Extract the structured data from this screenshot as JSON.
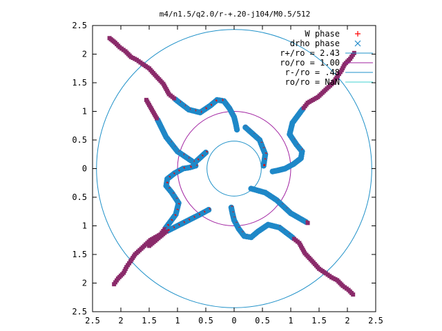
{
  "chart_data": {
    "type": "scatter",
    "title": "m4/n1.5/q2.0/r-+.20-j104/M0.5/512",
    "xlim": [
      -2.5,
      2.5
    ],
    "ylim": [
      -2.5,
      2.5
    ],
    "x_ticks": [
      "2.5",
      "2",
      "1.5",
      "1",
      "0.5",
      "0",
      "0.5",
      "1",
      "1.5",
      "2",
      "2.5"
    ],
    "y_ticks": [
      "2.5",
      "2",
      "1.5",
      "1",
      "0.5",
      "0",
      "0.5",
      "1",
      "1.5",
      "2",
      "2.5"
    ],
    "grid": false,
    "legend_position": "top-right",
    "legend": [
      {
        "label": "W phase",
        "marker": "+",
        "color": "#ff0000"
      },
      {
        "label": "drho phase",
        "marker": "x",
        "color": "#1e88c8"
      },
      {
        "label": "r+/ro = 2.43",
        "marker": "line",
        "color": "#1e90c8"
      },
      {
        "label": "ro/ro = 1.00",
        "marker": "line",
        "color": "#a020a0"
      },
      {
        "label": "r-/ro = .48",
        "marker": "line",
        "color": "#1e90c8"
      },
      {
        "label": "ro/ro = NaN",
        "marker": "line",
        "color": "#40d0d0"
      }
    ],
    "circles": [
      {
        "radius": 2.43,
        "color": "#1e90c8"
      },
      {
        "radius": 1.0,
        "color": "#a020a0"
      },
      {
        "radius": 0.48,
        "color": "#1e90c8"
      }
    ],
    "spiral_arms": [
      {
        "points": [
          [
            0.05,
            0.68
          ],
          [
            0.03,
            0.78
          ],
          [
            0.0,
            0.9
          ],
          [
            -0.08,
            1.05
          ],
          [
            -0.18,
            1.18
          ],
          [
            -0.3,
            1.2
          ],
          [
            -0.42,
            1.1
          ],
          [
            -0.6,
            0.98
          ],
          [
            -0.8,
            1.03
          ],
          [
            -1.0,
            1.18
          ],
          [
            -1.15,
            1.3
          ],
          [
            -1.25,
            1.48
          ],
          [
            -1.4,
            1.64
          ],
          [
            -1.5,
            1.75
          ],
          [
            -1.62,
            1.83
          ],
          [
            -1.72,
            1.9
          ],
          [
            -1.82,
            1.95
          ],
          [
            -1.92,
            2.05
          ],
          [
            -2.02,
            2.12
          ],
          [
            -2.1,
            2.2
          ],
          [
            -2.2,
            2.28
          ]
        ]
      },
      {
        "points": [
          [
            -0.68,
            0.05
          ],
          [
            -0.78,
            0.02
          ],
          [
            -0.9,
            0.0
          ],
          [
            -1.05,
            -0.08
          ],
          [
            -1.18,
            -0.18
          ],
          [
            -1.2,
            -0.3
          ],
          [
            -1.1,
            -0.42
          ],
          [
            -0.98,
            -0.6
          ],
          [
            -1.03,
            -0.8
          ],
          [
            -1.18,
            -1.0
          ],
          [
            -1.3,
            -1.15
          ],
          [
            -1.48,
            -1.25
          ],
          [
            -1.64,
            -1.4
          ],
          [
            -1.75,
            -1.5
          ],
          [
            -1.83,
            -1.62
          ],
          [
            -1.9,
            -1.72
          ],
          [
            -1.95,
            -1.82
          ],
          [
            -2.05,
            -1.92
          ],
          [
            -2.12,
            -2.02
          ]
        ]
      },
      {
        "points": [
          [
            -0.05,
            -0.68
          ],
          [
            -0.03,
            -0.78
          ],
          [
            0.0,
            -0.9
          ],
          [
            0.08,
            -1.05
          ],
          [
            0.18,
            -1.18
          ],
          [
            0.3,
            -1.2
          ],
          [
            0.42,
            -1.1
          ],
          [
            0.6,
            -0.98
          ],
          [
            0.8,
            -1.03
          ],
          [
            1.0,
            -1.18
          ],
          [
            1.15,
            -1.3
          ],
          [
            1.25,
            -1.48
          ],
          [
            1.4,
            -1.64
          ],
          [
            1.5,
            -1.75
          ],
          [
            1.62,
            -1.83
          ],
          [
            1.72,
            -1.9
          ],
          [
            1.82,
            -1.95
          ],
          [
            1.92,
            -2.05
          ],
          [
            2.02,
            -2.12
          ],
          [
            2.1,
            -2.2
          ]
        ]
      },
      {
        "points": [
          [
            0.68,
            -0.05
          ],
          [
            0.78,
            -0.03
          ],
          [
            0.9,
            0.0
          ],
          [
            1.05,
            0.08
          ],
          [
            1.18,
            0.18
          ],
          [
            1.2,
            0.3
          ],
          [
            1.1,
            0.42
          ],
          [
            0.98,
            0.6
          ],
          [
            1.03,
            0.8
          ],
          [
            1.18,
            1.0
          ],
          [
            1.3,
            1.15
          ],
          [
            1.48,
            1.25
          ],
          [
            1.64,
            1.4
          ],
          [
            1.75,
            1.5
          ],
          [
            1.83,
            1.62
          ],
          [
            1.9,
            1.72
          ],
          [
            1.95,
            1.82
          ],
          [
            2.05,
            1.92
          ],
          [
            2.12,
            2.02
          ]
        ]
      },
      {
        "points": [
          [
            0.2,
            0.72
          ],
          [
            0.45,
            0.5
          ],
          [
            0.55,
            0.25
          ],
          [
            0.52,
            0.05
          ]
        ]
      },
      {
        "points": [
          [
            -0.5,
            0.28
          ],
          [
            -0.7,
            0.1
          ],
          [
            -1.0,
            0.3
          ],
          [
            -1.2,
            0.55
          ],
          [
            -1.35,
            0.85
          ],
          [
            -1.55,
            1.2
          ]
        ]
      },
      {
        "points": [
          [
            -0.45,
            -0.72
          ],
          [
            -0.6,
            -0.8
          ],
          [
            -0.9,
            -0.95
          ],
          [
            -1.2,
            -1.1
          ],
          [
            -1.5,
            -1.35
          ]
        ]
      },
      {
        "points": [
          [
            0.3,
            -0.35
          ],
          [
            0.55,
            -0.42
          ],
          [
            0.75,
            -0.55
          ],
          [
            1.0,
            -0.78
          ],
          [
            1.3,
            -0.95
          ]
        ]
      }
    ]
  }
}
